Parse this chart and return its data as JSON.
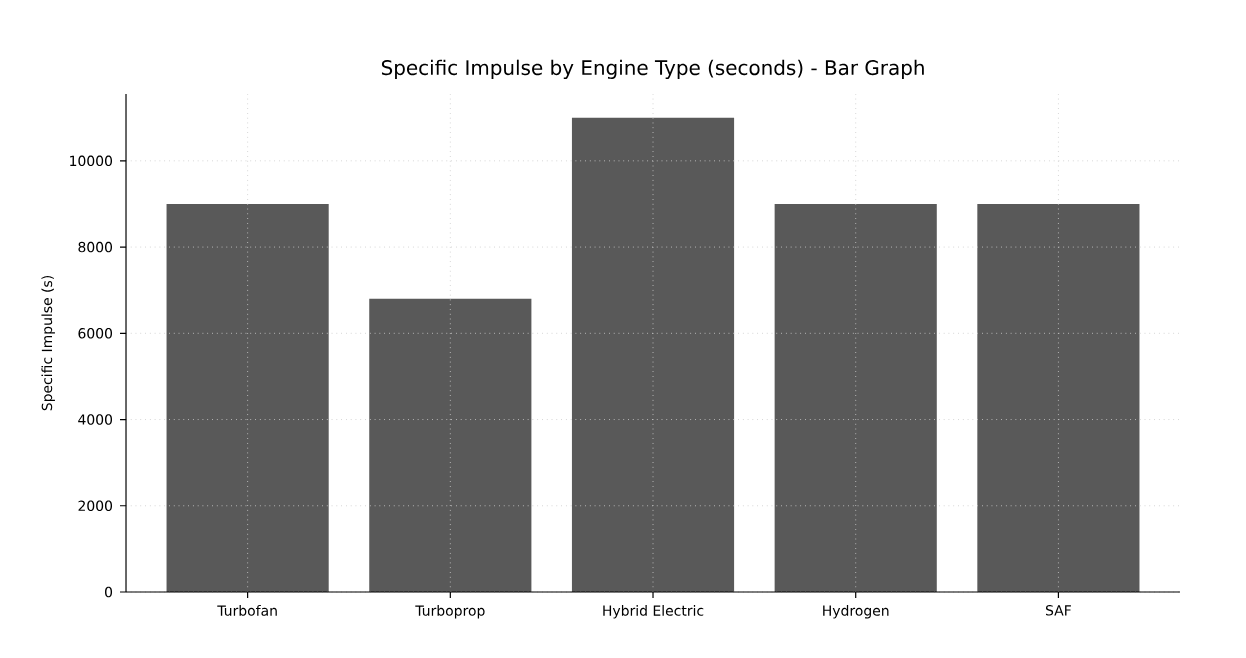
{
  "chart_data": {
    "type": "bar",
    "title": "Specific Impulse by Engine Type (seconds) - Bar Graph",
    "ylabel": "Specific Impulse (s)",
    "categories": [
      "Turbofan",
      "Turboprop",
      "Hybrid Electric",
      "Hydrogen",
      "SAF"
    ],
    "values": [
      9000,
      6800,
      11000,
      9000,
      9000
    ],
    "color": "#595959",
    "ylim": [
      0,
      11550
    ],
    "yticks": [
      0,
      2000,
      4000,
      6000,
      8000,
      10000
    ],
    "grid": true
  }
}
